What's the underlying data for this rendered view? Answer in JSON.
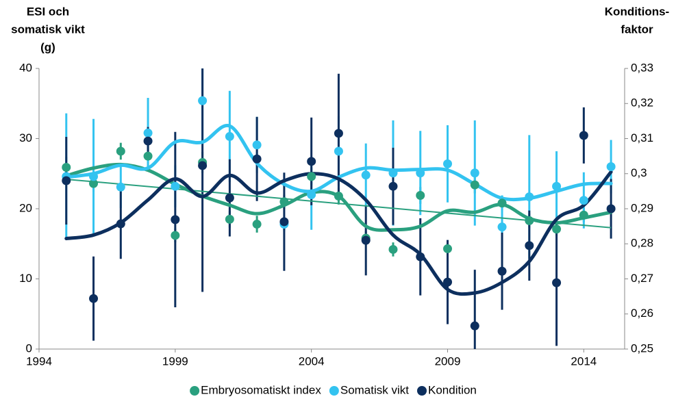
{
  "chart_data": {
    "type": "errorbar-scatter",
    "y_label": [
      "ESI och",
      "somatisk vikt",
      "(g)"
    ],
    "y2_label": [
      "Konditions-",
      "faktor"
    ],
    "xlim": [
      1994,
      2015.5
    ],
    "xticks": [
      1994,
      1999,
      2004,
      2009,
      2014
    ],
    "ylim": [
      0,
      40
    ],
    "yticks": [
      0,
      10,
      20,
      30,
      40
    ],
    "y2lim": [
      0.25,
      0.33
    ],
    "y2ticks": [
      {
        "value": 0.25,
        "label": "0,25"
      },
      {
        "value": 0.26,
        "label": "0,26"
      },
      {
        "value": 0.27,
        "label": "0,27"
      },
      {
        "value": 0.28,
        "label": "0,28"
      },
      {
        "value": 0.29,
        "label": "0,29"
      },
      {
        "value": 0.3,
        "label": "0,3"
      },
      {
        "value": 0.31,
        "label": "0,31"
      },
      {
        "value": 0.32,
        "label": "0,32"
      },
      {
        "value": 0.33,
        "label": "0,33"
      }
    ],
    "x": [
      1995,
      1996,
      1997,
      1998,
      1999,
      2000,
      2001,
      2002,
      2003,
      2004,
      2005,
      2006,
      2007,
      2008,
      2009,
      2010,
      2011,
      2012,
      2013,
      2014,
      2015
    ],
    "series": [
      {
        "name": "Embryosomatiskt index",
        "color": "#2aa07f",
        "values": [
          25.9,
          23.6,
          28.2,
          27.5,
          16.2,
          26.6,
          18.5,
          17.8,
          21.0,
          24.6,
          21.8,
          15.8,
          14.2,
          21.9,
          14.3,
          23.4,
          20.8,
          18.3,
          17.1,
          19.1,
          null
        ],
        "errors": [
          1.5,
          1.2,
          1.2,
          1.5,
          1.0,
          1.5,
          1.2,
          1.2,
          1.0,
          1.2,
          1.2,
          1.0,
          1.0,
          1.2,
          1.0,
          1.2,
          1.0,
          1.0,
          1.0,
          1.0,
          null
        ],
        "smooth": [
          24.7,
          25.8,
          26.3,
          25.5,
          23.5,
          21.8,
          20.5,
          19.3,
          20.5,
          22.3,
          21.8,
          17.5,
          17.0,
          17.5,
          19.7,
          19.5,
          20.6,
          18.6,
          18.0,
          18.7,
          19.5
        ],
        "trend": [
          24.2,
          17.3
        ]
      },
      {
        "name": "Somatisk vikt",
        "color": "#33c3f0",
        "values": [
          24.6,
          24.6,
          23.1,
          30.8,
          23.2,
          35.4,
          30.3,
          29.1,
          17.8,
          22.0,
          28.2,
          24.8,
          25.1,
          25.1,
          26.4,
          25.1,
          17.4,
          21.7,
          23.2,
          21.2,
          26.0
        ],
        "errors": [
          9.0,
          8.2,
          3.0,
          5.0,
          3.0,
          6.0,
          6.5,
          4.0,
          1.0,
          5.0,
          5.0,
          4.5,
          7.5,
          6.0,
          5.5,
          7.5,
          4.5,
          8.8,
          5.0,
          4.0,
          3.8
        ],
        "smooth": [
          24.5,
          25.0,
          26.2,
          25.8,
          29.5,
          29.5,
          31.8,
          26.5,
          23.5,
          22.5,
          24.5,
          25.8,
          25.5,
          25.6,
          25.5,
          23.5,
          21.5,
          21.5,
          22.5,
          23.5,
          23.6
        ]
      },
      {
        "name": "Kondition",
        "color": "#0d2f5e",
        "axis": "y2",
        "values": [
          0.298,
          0.2644,
          0.2857,
          0.3093,
          0.2869,
          0.3023,
          0.2931,
          0.3042,
          0.2863,
          0.3035,
          0.3115,
          0.281,
          0.2964,
          0.2763,
          0.2691,
          0.2566,
          0.2722,
          0.2795,
          0.2689,
          0.3109,
          0.29
        ],
        "errors": [
          0.0125,
          0.012,
          0.01,
          0.004,
          0.025,
          0.036,
          0.011,
          0.012,
          0.014,
          0.0125,
          0.017,
          0.01,
          0.011,
          0.011,
          0.012,
          0.016,
          0.011,
          0.01,
          0.018,
          0.008,
          0.0085
        ],
        "smooth": [
          0.2815,
          0.2825,
          0.286,
          0.2925,
          0.2985,
          0.2935,
          0.2995,
          0.2945,
          0.298,
          0.3,
          0.2985,
          0.2925,
          0.2825,
          0.277,
          0.267,
          0.266,
          0.269,
          0.275,
          0.287,
          0.291,
          0.3005
        ]
      }
    ]
  }
}
